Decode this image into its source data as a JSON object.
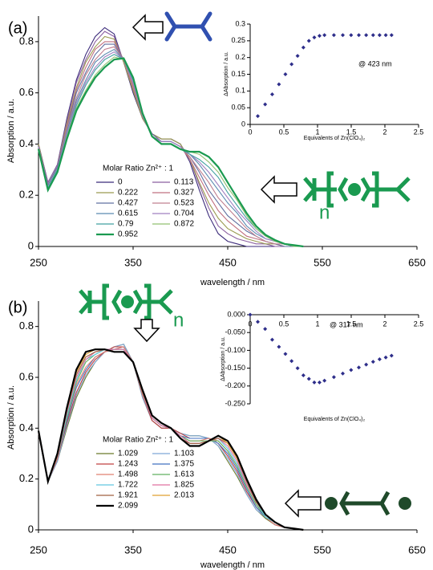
{
  "chart_data": [
    {
      "type": "line",
      "panel_label": "(a)",
      "x_label": "wavelength / nm",
      "y_label": "Absorption / a.u.",
      "legend_title": "Molar Ratio Zn²⁺ : 1",
      "annotations": [
        "n"
      ],
      "xlim": [
        250,
        650
      ],
      "xticks": [
        250,
        350,
        450,
        550,
        650
      ],
      "ylim": [
        0,
        0.9
      ],
      "yticks": [
        0,
        0.2,
        0.4,
        0.6,
        0.8
      ],
      "x": [
        250,
        260,
        270,
        280,
        290,
        300,
        310,
        320,
        330,
        340,
        350,
        360,
        370,
        380,
        390,
        400,
        410,
        420,
        430,
        440,
        450,
        460,
        470,
        480,
        490,
        500,
        510,
        520,
        530
      ],
      "series": [
        {
          "name": "0",
          "color": "#3b2a7a",
          "values": [
            0.4,
            0.25,
            0.32,
            0.5,
            0.65,
            0.75,
            0.82,
            0.855,
            0.83,
            0.72,
            0.6,
            0.5,
            0.44,
            0.42,
            0.42,
            0.4,
            0.33,
            0.22,
            0.12,
            0.05,
            0.02,
            0.01,
            0,
            0,
            0,
            0,
            0,
            0,
            0
          ]
        },
        {
          "name": "0.113",
          "color": "#8a5fa0",
          "values": [
            0.4,
            0.25,
            0.32,
            0.49,
            0.64,
            0.73,
            0.8,
            0.84,
            0.82,
            0.72,
            0.61,
            0.5,
            0.44,
            0.42,
            0.42,
            0.4,
            0.34,
            0.24,
            0.15,
            0.08,
            0.05,
            0.03,
            0.02,
            0.01,
            0.01,
            0,
            0,
            0,
            0
          ]
        },
        {
          "name": "0.222",
          "color": "#9a9a50",
          "values": [
            0.4,
            0.24,
            0.31,
            0.48,
            0.62,
            0.72,
            0.78,
            0.82,
            0.81,
            0.72,
            0.61,
            0.5,
            0.44,
            0.42,
            0.42,
            0.4,
            0.34,
            0.25,
            0.17,
            0.11,
            0.07,
            0.05,
            0.03,
            0.02,
            0.01,
            0.01,
            0,
            0,
            0
          ]
        },
        {
          "name": "0.327",
          "color": "#c07080",
          "values": [
            0.39,
            0.24,
            0.31,
            0.47,
            0.61,
            0.7,
            0.77,
            0.8,
            0.8,
            0.73,
            0.62,
            0.51,
            0.44,
            0.41,
            0.41,
            0.39,
            0.34,
            0.27,
            0.2,
            0.14,
            0.1,
            0.07,
            0.04,
            0.03,
            0.02,
            0.01,
            0,
            0,
            0
          ]
        },
        {
          "name": "0.427",
          "color": "#6070a0",
          "values": [
            0.39,
            0.24,
            0.31,
            0.46,
            0.6,
            0.68,
            0.75,
            0.79,
            0.79,
            0.73,
            0.63,
            0.51,
            0.44,
            0.41,
            0.41,
            0.39,
            0.35,
            0.29,
            0.22,
            0.17,
            0.12,
            0.09,
            0.06,
            0.04,
            0.02,
            0.01,
            0,
            0,
            0
          ]
        },
        {
          "name": "0.523",
          "color": "#c08090",
          "values": [
            0.39,
            0.23,
            0.3,
            0.46,
            0.58,
            0.67,
            0.73,
            0.77,
            0.78,
            0.73,
            0.63,
            0.51,
            0.43,
            0.41,
            0.41,
            0.39,
            0.35,
            0.3,
            0.25,
            0.19,
            0.15,
            0.11,
            0.07,
            0.04,
            0.02,
            0.01,
            0.01,
            0,
            0
          ]
        },
        {
          "name": "0.615",
          "color": "#5a8ab0",
          "values": [
            0.39,
            0.23,
            0.3,
            0.45,
            0.57,
            0.65,
            0.72,
            0.75,
            0.77,
            0.73,
            0.64,
            0.51,
            0.43,
            0.41,
            0.41,
            0.39,
            0.36,
            0.32,
            0.27,
            0.22,
            0.17,
            0.13,
            0.08,
            0.05,
            0.03,
            0.02,
            0.01,
            0,
            0
          ]
        },
        {
          "name": "0.704",
          "color": "#a080c0",
          "values": [
            0.39,
            0.23,
            0.3,
            0.44,
            0.56,
            0.64,
            0.7,
            0.74,
            0.76,
            0.73,
            0.64,
            0.51,
            0.43,
            0.41,
            0.41,
            0.39,
            0.36,
            0.33,
            0.29,
            0.24,
            0.19,
            0.14,
            0.1,
            0.06,
            0.03,
            0.02,
            0.01,
            0,
            0
          ]
        },
        {
          "name": "0.79",
          "color": "#40a0a0",
          "values": [
            0.38,
            0.23,
            0.3,
            0.43,
            0.55,
            0.63,
            0.69,
            0.73,
            0.75,
            0.73,
            0.65,
            0.52,
            0.43,
            0.4,
            0.4,
            0.38,
            0.36,
            0.34,
            0.31,
            0.27,
            0.21,
            0.16,
            0.11,
            0.07,
            0.04,
            0.02,
            0.01,
            0,
            0
          ]
        },
        {
          "name": "0.872",
          "color": "#90c070",
          "values": [
            0.38,
            0.22,
            0.29,
            0.43,
            0.54,
            0.61,
            0.67,
            0.71,
            0.74,
            0.73,
            0.66,
            0.52,
            0.43,
            0.4,
            0.4,
            0.38,
            0.37,
            0.36,
            0.33,
            0.29,
            0.23,
            0.18,
            0.12,
            0.07,
            0.04,
            0.02,
            0.01,
            0,
            0
          ]
        },
        {
          "name": "0.952",
          "color": "#1a9a50",
          "values": [
            0.38,
            0.22,
            0.29,
            0.42,
            0.53,
            0.6,
            0.66,
            0.7,
            0.73,
            0.735,
            0.66,
            0.52,
            0.43,
            0.4,
            0.4,
            0.38,
            0.37,
            0.37,
            0.35,
            0.31,
            0.25,
            0.19,
            0.13,
            0.08,
            0.045,
            0.025,
            0.01,
            0.005,
            0
          ]
        }
      ]
    },
    {
      "type": "scatter",
      "annotation": "@ 423 nm",
      "x_label": "Equivalents of  Zn(ClO₄)₂",
      "y_label": "ΔAbsorption / a.u.",
      "color": "#2e2e8a",
      "xlim": [
        0,
        2.5
      ],
      "xticks": [
        0,
        0.5,
        1,
        1.5,
        2,
        2.5
      ],
      "ylim": [
        0,
        0.3
      ],
      "yticks": [
        0,
        0.05,
        0.1,
        0.15,
        0.2,
        0.25,
        0.3
      ],
      "x": [
        0.113,
        0.222,
        0.327,
        0.427,
        0.523,
        0.615,
        0.704,
        0.79,
        0.872,
        0.952,
        1.029,
        1.103,
        1.243,
        1.375,
        1.498,
        1.613,
        1.722,
        1.825,
        1.921,
        2.013,
        2.099
      ],
      "values": [
        0.025,
        0.06,
        0.09,
        0.12,
        0.15,
        0.18,
        0.205,
        0.23,
        0.25,
        0.26,
        0.265,
        0.267,
        0.267,
        0.267,
        0.267,
        0.267,
        0.267,
        0.267,
        0.267,
        0.267,
        0.267
      ]
    },
    {
      "type": "line",
      "panel_label": "(b)",
      "x_label": "wavelength / nm",
      "y_label": "Absorption / a.u.",
      "legend_title": "Molar Ratio Zn²⁺ : 1",
      "annotations": [
        "n"
      ],
      "xlim": [
        250,
        650
      ],
      "xticks": [
        250,
        350,
        450,
        550,
        650
      ],
      "ylim": [
        0,
        0.9
      ],
      "yticks": [
        0,
        0.2,
        0.4,
        0.6,
        0.8
      ],
      "x": [
        250,
        260,
        270,
        280,
        290,
        300,
        310,
        320,
        330,
        340,
        350,
        360,
        370,
        380,
        390,
        400,
        410,
        420,
        430,
        440,
        450,
        460,
        470,
        480,
        490,
        500,
        510,
        520,
        530
      ],
      "series": [
        {
          "name": "1.029",
          "color": "#6b7a2a",
          "values": [
            0.38,
            0.19,
            0.27,
            0.4,
            0.52,
            0.6,
            0.66,
            0.7,
            0.72,
            0.73,
            0.66,
            0.52,
            0.43,
            0.4,
            0.4,
            0.38,
            0.37,
            0.37,
            0.36,
            0.33,
            0.27,
            0.21,
            0.14,
            0.08,
            0.045,
            0.02,
            0.01,
            0.005,
            0
          ]
        },
        {
          "name": "1.103",
          "color": "#7fa8d8",
          "values": [
            0.38,
            0.19,
            0.27,
            0.41,
            0.53,
            0.61,
            0.66,
            0.7,
            0.72,
            0.73,
            0.66,
            0.52,
            0.43,
            0.4,
            0.4,
            0.38,
            0.37,
            0.37,
            0.36,
            0.33,
            0.28,
            0.22,
            0.14,
            0.08,
            0.05,
            0.02,
            0.01,
            0.005,
            0
          ]
        },
        {
          "name": "1.243",
          "color": "#c04040",
          "values": [
            0.38,
            0.19,
            0.28,
            0.42,
            0.54,
            0.62,
            0.67,
            0.7,
            0.72,
            0.72,
            0.66,
            0.53,
            0.43,
            0.4,
            0.4,
            0.38,
            0.36,
            0.36,
            0.36,
            0.34,
            0.29,
            0.23,
            0.15,
            0.09,
            0.05,
            0.02,
            0.01,
            0.005,
            0
          ]
        },
        {
          "name": "1.375",
          "color": "#4070c0",
          "values": [
            0.38,
            0.19,
            0.28,
            0.43,
            0.56,
            0.63,
            0.68,
            0.7,
            0.71,
            0.72,
            0.66,
            0.53,
            0.44,
            0.41,
            0.4,
            0.37,
            0.36,
            0.36,
            0.36,
            0.34,
            0.3,
            0.24,
            0.16,
            0.09,
            0.05,
            0.02,
            0.01,
            0.005,
            0
          ]
        },
        {
          "name": "1.498",
          "color": "#e08070",
          "values": [
            0.38,
            0.19,
            0.28,
            0.44,
            0.57,
            0.64,
            0.68,
            0.7,
            0.71,
            0.72,
            0.66,
            0.53,
            0.44,
            0.41,
            0.4,
            0.37,
            0.35,
            0.35,
            0.36,
            0.35,
            0.31,
            0.25,
            0.17,
            0.1,
            0.05,
            0.02,
            0.01,
            0.005,
            0
          ]
        },
        {
          "name": "1.613",
          "color": "#60b060",
          "values": [
            0.39,
            0.19,
            0.29,
            0.44,
            0.58,
            0.66,
            0.69,
            0.71,
            0.71,
            0.71,
            0.66,
            0.54,
            0.44,
            0.41,
            0.4,
            0.37,
            0.35,
            0.35,
            0.35,
            0.35,
            0.31,
            0.25,
            0.17,
            0.1,
            0.05,
            0.03,
            0.01,
            0.005,
            0
          ]
        },
        {
          "name": "1.722",
          "color": "#60c8e0",
          "values": [
            0.39,
            0.19,
            0.29,
            0.45,
            0.59,
            0.67,
            0.69,
            0.71,
            0.71,
            0.71,
            0.66,
            0.54,
            0.44,
            0.41,
            0.4,
            0.37,
            0.34,
            0.34,
            0.35,
            0.36,
            0.32,
            0.26,
            0.18,
            0.11,
            0.05,
            0.03,
            0.01,
            0.005,
            0
          ]
        },
        {
          "name": "1.825",
          "color": "#e070a0",
          "values": [
            0.39,
            0.19,
            0.29,
            0.46,
            0.6,
            0.67,
            0.7,
            0.71,
            0.71,
            0.71,
            0.66,
            0.54,
            0.44,
            0.41,
            0.4,
            0.37,
            0.34,
            0.34,
            0.35,
            0.36,
            0.33,
            0.27,
            0.18,
            0.11,
            0.06,
            0.03,
            0.01,
            0.005,
            0
          ]
        },
        {
          "name": "1.921",
          "color": "#a06040",
          "values": [
            0.39,
            0.19,
            0.29,
            0.47,
            0.61,
            0.68,
            0.7,
            0.71,
            0.7,
            0.7,
            0.66,
            0.54,
            0.45,
            0.42,
            0.4,
            0.36,
            0.34,
            0.34,
            0.35,
            0.36,
            0.34,
            0.28,
            0.19,
            0.11,
            0.06,
            0.03,
            0.01,
            0.005,
            0
          ]
        },
        {
          "name": "2.013",
          "color": "#e0a030",
          "values": [
            0.39,
            0.19,
            0.3,
            0.47,
            0.62,
            0.69,
            0.71,
            0.71,
            0.7,
            0.7,
            0.66,
            0.55,
            0.45,
            0.42,
            0.4,
            0.36,
            0.33,
            0.33,
            0.35,
            0.37,
            0.34,
            0.28,
            0.2,
            0.12,
            0.06,
            0.03,
            0.01,
            0.005,
            0
          ]
        },
        {
          "name": "2.099",
          "color": "#000000",
          "values": [
            0.39,
            0.19,
            0.3,
            0.48,
            0.63,
            0.7,
            0.71,
            0.71,
            0.7,
            0.7,
            0.66,
            0.55,
            0.45,
            0.42,
            0.4,
            0.36,
            0.33,
            0.33,
            0.35,
            0.37,
            0.35,
            0.29,
            0.2,
            0.12,
            0.06,
            0.03,
            0.01,
            0.005,
            0
          ]
        }
      ]
    },
    {
      "type": "scatter",
      "annotation": "@ 317 nm",
      "x_label": "Equivalents of  Zn(ClO₄)₂",
      "y_label": "ΔAbsorption / a.u.",
      "color": "#2e2e8a",
      "xlim": [
        0,
        2.5
      ],
      "xticks": [
        0,
        0.5,
        1,
        1.5,
        2,
        2.5
      ],
      "ylim": [
        -0.25,
        0
      ],
      "yticks": [
        {
          "value": 0,
          "label": "0.000"
        },
        {
          "value": -0.05,
          "label": "-0.050"
        },
        {
          "value": -0.1,
          "label": "-0.100"
        },
        {
          "value": -0.15,
          "label": "-0.150"
        },
        {
          "value": -0.2,
          "label": "-0.200"
        },
        {
          "value": -0.25,
          "label": "-0.250"
        }
      ],
      "x": [
        0,
        0.113,
        0.222,
        0.327,
        0.427,
        0.523,
        0.615,
        0.704,
        0.79,
        0.872,
        0.952,
        1.029,
        1.103,
        1.243,
        1.375,
        1.498,
        1.613,
        1.722,
        1.825,
        1.921,
        2.013,
        2.099
      ],
      "values": [
        0,
        -0.02,
        -0.04,
        -0.07,
        -0.09,
        -0.11,
        -0.13,
        -0.15,
        -0.17,
        -0.18,
        -0.19,
        -0.19,
        -0.185,
        -0.175,
        -0.165,
        -0.155,
        -0.148,
        -0.14,
        -0.132,
        -0.125,
        -0.12,
        -0.115
      ]
    }
  ]
}
